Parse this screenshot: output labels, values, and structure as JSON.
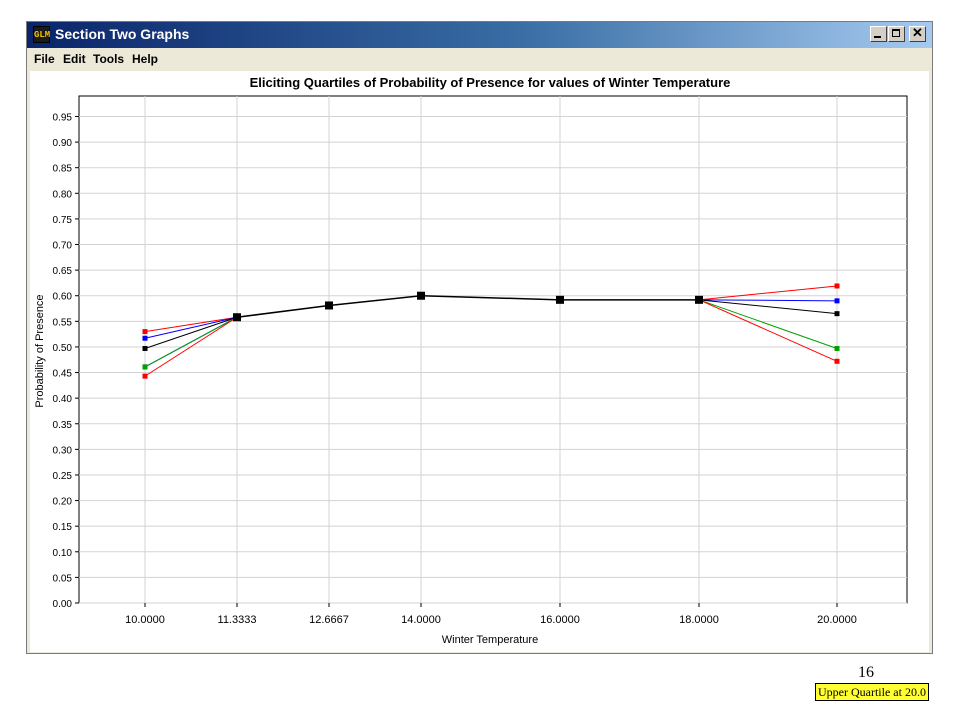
{
  "window": {
    "title": "Section Two Graphs",
    "app_icon_text": "GLM",
    "controls": {
      "minimize": "minimize-icon",
      "maximize": "maximize-icon",
      "close": "close-icon",
      "close_glyph": "✕"
    }
  },
  "menu": {
    "items": [
      {
        "label": "File"
      },
      {
        "label": "Edit"
      },
      {
        "label": "Tools"
      },
      {
        "label": "Help"
      }
    ]
  },
  "chart_data": {
    "type": "line",
    "title": "Eliciting Quartiles of Probability of Presence for values of Winter Temperature",
    "xlabel": "Winter Temperature",
    "ylabel": "Probability of Presence",
    "x_ticks": [
      "10.0000",
      "11.3333",
      "12.6667",
      "14.0000",
      "16.0000",
      "18.0000",
      "20.0000"
    ],
    "y_ticks": [
      "0.00",
      "0.05",
      "0.10",
      "0.15",
      "0.20",
      "0.25",
      "0.30",
      "0.35",
      "0.40",
      "0.45",
      "0.50",
      "0.55",
      "0.60",
      "0.65",
      "0.70",
      "0.75",
      "0.80",
      "0.85",
      "0.90",
      "0.95"
    ],
    "ylim": [
      0,
      0.99
    ],
    "grid": true,
    "colors": {
      "black": "#000000",
      "red": "#ff0000",
      "blue": "#0000ff",
      "green": "#00a000"
    },
    "series": [
      {
        "color": "#ff0000",
        "values": [
          0.53,
          0.558
        ]
      },
      {
        "color": "#0000ff",
        "values": [
          0.517,
          0.558
        ]
      },
      {
        "color": "#000000",
        "values": [
          0.497,
          0.558
        ]
      },
      {
        "color": "#0000ff",
        "values": [
          0.461,
          0.558
        ]
      },
      {
        "color": "#00a000",
        "values": [
          0.461,
          0.558
        ]
      },
      {
        "color": "#ff0000",
        "values": [
          0.443,
          0.558
        ]
      },
      {
        "color": "#ff0000",
        "values": [
          0.592,
          0.619
        ]
      },
      {
        "color": "#0000ff",
        "values": [
          0.592,
          0.59
        ]
      },
      {
        "color": "#000000",
        "values": [
          0.592,
          0.565
        ]
      },
      {
        "color": "#00a000",
        "values": [
          0.592,
          0.497
        ]
      },
      {
        "color": "#ff0000",
        "values": [
          0.592,
          0.472
        ]
      },
      {
        "color": "#000000",
        "values": [
          0.558,
          0.581,
          0.6,
          0.592,
          0.592
        ]
      }
    ],
    "status_tip": "Upper Quartile at 20.0"
  },
  "page_number": "16"
}
